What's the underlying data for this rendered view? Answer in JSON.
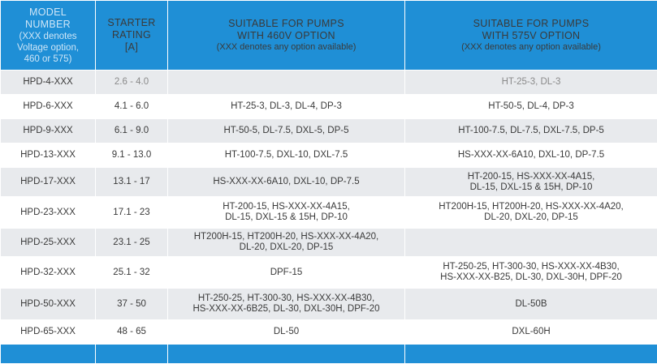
{
  "headers": {
    "model": [
      "MODEL",
      "NUMBER"
    ],
    "model_note": [
      "(XXX denotes",
      "Voltage option,",
      "460 or 575)"
    ],
    "rating": [
      "STARTER",
      "RATING",
      "[A]"
    ],
    "p460": [
      "SUITABLE FOR PUMPS",
      "WITH 460V OPTION"
    ],
    "p460_note": "(XXX denotes any option available)",
    "p575": [
      "SUITABLE FOR PUMPS",
      "WITH 575V OPTION"
    ],
    "p575_note": "(XXX denotes any option available)"
  },
  "rows": [
    {
      "model": "HPD-4-XXX",
      "rating": "2.6 - 4.0",
      "p460": [],
      "p575": [
        "HT-25-3, DL-3"
      ]
    },
    {
      "model": "HPD-6-XXX",
      "rating": "4.1 - 6.0",
      "p460": [
        "HT-25-3, DL-3, DL-4, DP-3"
      ],
      "p575": [
        "HT-50-5, DL-4, DP-3"
      ]
    },
    {
      "model": "HPD-9-XXX",
      "rating": "6.1 - 9.0",
      "p460": [
        "HT-50-5, DL-7.5, DXL-5, DP-5"
      ],
      "p575": [
        "HT-100-7.5, DL-7.5, DXL-7.5, DP-5"
      ]
    },
    {
      "model": "HPD-13-XXX",
      "rating": "9.1 - 13.0",
      "p460": [
        "HT-100-7.5, DXL-10, DXL-7.5"
      ],
      "p575": [
        "HS-XXX-XX-6A10, DXL-10, DP-7.5"
      ]
    },
    {
      "model": "HPD-17-XXX",
      "rating": "13.1 - 17",
      "p460": [
        "HS-XXX-XX-6A10, DXL-10, DP-7.5"
      ],
      "p575": [
        "HT-200-15, HS-XXX-XX-4A15,",
        "DL-15, DXL-15 & 15H, DP-10"
      ]
    },
    {
      "model": "HPD-23-XXX",
      "rating": "17.1 - 23",
      "p460": [
        "HT-200-15, HS-XXX-XX-4A15,",
        "DL-15, DXL-15 & 15H, DP-10"
      ],
      "p575": [
        "HT200H-15, HT200H-20, HS-XXX-XX-4A20,",
        "DL-20, DXL-20, DP-15"
      ]
    },
    {
      "model": "HPD-25-XXX",
      "rating": "23.1 - 25",
      "p460": [
        "HT200H-15, HT200H-20, HS-XXX-XX-4A20,",
        "DL-20, DXL-20, DP-15"
      ],
      "p575": []
    },
    {
      "model": "HPD-32-XXX",
      "rating": "25.1 - 32",
      "p460": [
        "DPF-15"
      ],
      "p575": [
        "HT-250-25, HT-300-30, HS-XXX-XX-4B30,",
        "HS-XXX-XX-B25,  DL-30, DXL-30H, DPF-20"
      ]
    },
    {
      "model": "HPD-50-XXX",
      "rating": "37 - 50",
      "p460": [
        "HT-250-25, HT-300-30, HS-XXX-XX-4B30,",
        "HS-XXX-XX-6B25, DL-30, DXL-30H, DPF-20"
      ],
      "p575": [
        "DL-50B"
      ]
    },
    {
      "model": "HPD-65-XXX",
      "rating": "48 - 65",
      "p460": [
        "DL-50"
      ],
      "p575": [
        "DXL-60H"
      ]
    }
  ],
  "colors": {
    "header_bg": "#1f8fd6",
    "row_alt_bg": "#e8eaed",
    "text": "#3a3a3a"
  }
}
